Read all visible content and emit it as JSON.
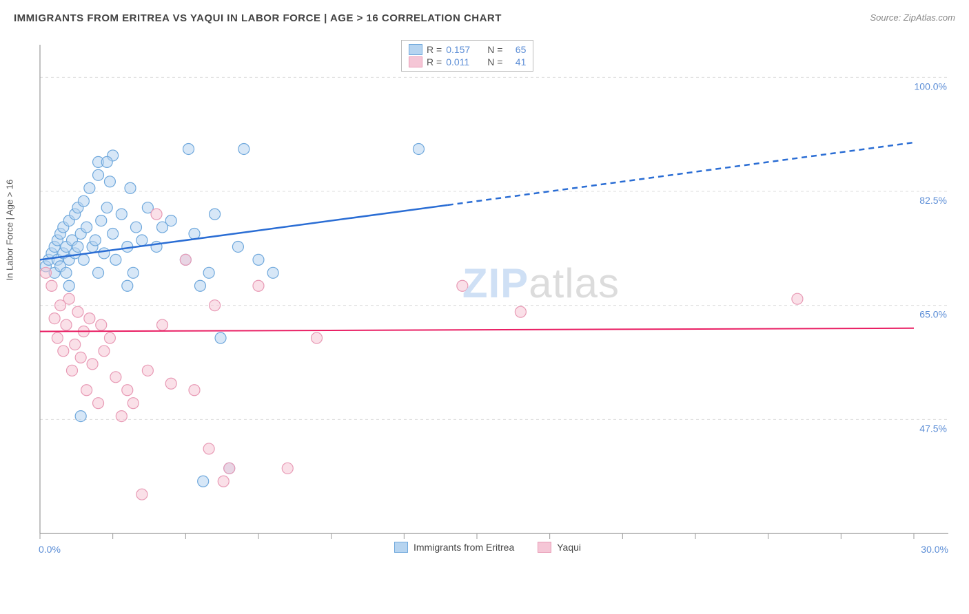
{
  "title": "IMMIGRANTS FROM ERITREA VS YAQUI IN LABOR FORCE | AGE > 16 CORRELATION CHART",
  "source_label": "Source: ",
  "source_name": "ZipAtlas.com",
  "y_axis_label": "In Labor Force | Age > 16",
  "watermark_zip": "ZIP",
  "watermark_atlas": "atlas",
  "chart": {
    "type": "scatter",
    "xlim": [
      0.0,
      30.0
    ],
    "ylim": [
      30.0,
      105.0
    ],
    "x_ticks": [
      0.0,
      2.5,
      5.0,
      7.5,
      10.0,
      12.5,
      15.0,
      17.5,
      20.0,
      22.5,
      25.0,
      27.5,
      30.0
    ],
    "x_tick_labels_shown": {
      "0": "0.0%",
      "12": "30.0%"
    },
    "y_grid": [
      47.5,
      65.0,
      82.5,
      100.0
    ],
    "y_grid_labels": [
      "47.5%",
      "65.0%",
      "82.5%",
      "100.0%"
    ],
    "grid_color": "#dcdcdc",
    "axis_color": "#999999",
    "background_color": "#ffffff",
    "marker_radius": 8,
    "marker_stroke_width": 1.2,
    "series": [
      {
        "name": "Immigrants from Eritrea",
        "fill": "#b6d4f0",
        "stroke": "#6fa8dc",
        "fill_opacity": 0.55,
        "R": "0.157",
        "N": "65",
        "trend": {
          "x1": 0.0,
          "y1": 72.0,
          "x2": 30.0,
          "y2": 90.0,
          "solid_until_x": 14.0,
          "color": "#2a6dd4",
          "width": 2.5
        },
        "points": [
          [
            0.2,
            71
          ],
          [
            0.3,
            72
          ],
          [
            0.4,
            73
          ],
          [
            0.5,
            70
          ],
          [
            0.5,
            74
          ],
          [
            0.6,
            75
          ],
          [
            0.6,
            72
          ],
          [
            0.7,
            76
          ],
          [
            0.7,
            71
          ],
          [
            0.8,
            73
          ],
          [
            0.8,
            77
          ],
          [
            0.9,
            74
          ],
          [
            0.9,
            70
          ],
          [
            1.0,
            78
          ],
          [
            1.0,
            72
          ],
          [
            1.1,
            75
          ],
          [
            1.2,
            79
          ],
          [
            1.2,
            73
          ],
          [
            1.3,
            80
          ],
          [
            1.3,
            74
          ],
          [
            1.4,
            76
          ],
          [
            1.5,
            81
          ],
          [
            1.5,
            72
          ],
          [
            1.6,
            77
          ],
          [
            1.7,
            83
          ],
          [
            1.8,
            74
          ],
          [
            1.9,
            75
          ],
          [
            2.0,
            85
          ],
          [
            2.0,
            70
          ],
          [
            2.1,
            78
          ],
          [
            2.2,
            73
          ],
          [
            2.3,
            80
          ],
          [
            2.4,
            84
          ],
          [
            2.5,
            76
          ],
          [
            2.5,
            88
          ],
          [
            2.6,
            72
          ],
          [
            2.8,
            79
          ],
          [
            3.0,
            74
          ],
          [
            3.1,
            83
          ],
          [
            3.2,
            70
          ],
          [
            3.3,
            77
          ],
          [
            3.5,
            75
          ],
          [
            3.7,
            80
          ],
          [
            4.0,
            74
          ],
          [
            4.2,
            77
          ],
          [
            4.5,
            78
          ],
          [
            5.0,
            72
          ],
          [
            5.1,
            89
          ],
          [
            5.3,
            76
          ],
          [
            5.5,
            68
          ],
          [
            5.6,
            38
          ],
          [
            5.8,
            70
          ],
          [
            6.0,
            79
          ],
          [
            6.2,
            60
          ],
          [
            6.5,
            40
          ],
          [
            6.8,
            74
          ],
          [
            7.0,
            89
          ],
          [
            7.5,
            72
          ],
          [
            8.0,
            70
          ],
          [
            1.4,
            48
          ],
          [
            2.0,
            87
          ],
          [
            2.3,
            87
          ],
          [
            13.0,
            89
          ],
          [
            3.0,
            68
          ],
          [
            1.0,
            68
          ]
        ]
      },
      {
        "name": "Yaqui",
        "fill": "#f5c6d6",
        "stroke": "#e89ab5",
        "fill_opacity": 0.55,
        "R": "0.011",
        "N": "41",
        "trend": {
          "x1": 0.0,
          "y1": 61.0,
          "x2": 30.0,
          "y2": 61.5,
          "solid_until_x": 30.0,
          "color": "#e91e63",
          "width": 2
        },
        "points": [
          [
            0.2,
            70
          ],
          [
            0.4,
            68
          ],
          [
            0.5,
            63
          ],
          [
            0.6,
            60
          ],
          [
            0.7,
            65
          ],
          [
            0.8,
            58
          ],
          [
            0.9,
            62
          ],
          [
            1.0,
            66
          ],
          [
            1.1,
            55
          ],
          [
            1.2,
            59
          ],
          [
            1.3,
            64
          ],
          [
            1.4,
            57
          ],
          [
            1.5,
            61
          ],
          [
            1.6,
            52
          ],
          [
            1.7,
            63
          ],
          [
            1.8,
            56
          ],
          [
            2.0,
            50
          ],
          [
            2.1,
            62
          ],
          [
            2.2,
            58
          ],
          [
            2.4,
            60
          ],
          [
            2.6,
            54
          ],
          [
            2.8,
            48
          ],
          [
            3.0,
            52
          ],
          [
            3.2,
            50
          ],
          [
            3.5,
            36
          ],
          [
            3.7,
            55
          ],
          [
            4.0,
            79
          ],
          [
            4.2,
            62
          ],
          [
            4.5,
            53
          ],
          [
            5.0,
            72
          ],
          [
            5.3,
            52
          ],
          [
            5.8,
            43
          ],
          [
            6.0,
            65
          ],
          [
            6.3,
            38
          ],
          [
            6.5,
            40
          ],
          [
            7.5,
            68
          ],
          [
            8.5,
            40
          ],
          [
            9.5,
            60
          ],
          [
            14.5,
            68
          ],
          [
            16.5,
            64
          ],
          [
            26.0,
            66
          ]
        ]
      }
    ]
  },
  "legend_top": {
    "R_label": "R =",
    "N_label": "N ="
  },
  "legend_bottom": {
    "series1": "Immigrants from Eritrea",
    "series2": "Yaqui"
  },
  "colors": {
    "tick_label": "#5b8dd6",
    "value_text": "#5b8dd6",
    "label_text": "#555555"
  }
}
